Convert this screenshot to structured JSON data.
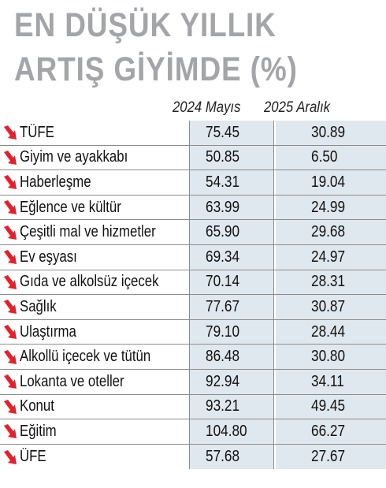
{
  "title": {
    "line1": "EN DÜŞÜK YILLIK",
    "line2": "ARTIŞ GİYİMDE (%)"
  },
  "colors": {
    "title": "#a3a5a8",
    "cell_bg": "#dfe8ee",
    "arrow": "#e4202a",
    "rule": "#8c8c8c"
  },
  "chart_data": {
    "type": "table",
    "columns": [
      "2024 Mayıs",
      "2025 Aralık"
    ],
    "rows": [
      {
        "label": "TÜFE",
        "values": [
          "75.45",
          "30.89"
        ]
      },
      {
        "label": "Giyim ve ayakkabı",
        "values": [
          "50.85",
          "6.50"
        ]
      },
      {
        "label": "Haberleşme",
        "values": [
          "54.31",
          "19.04"
        ]
      },
      {
        "label": "Eğlence ve kültür",
        "values": [
          "63.99",
          "24.99"
        ]
      },
      {
        "label": "Çeşitli mal ve hizmetler",
        "values": [
          "65.90",
          "29.68"
        ]
      },
      {
        "label": "Ev eşyası",
        "values": [
          "69.34",
          "24.97"
        ]
      },
      {
        "label": "Gıda ve alkolsüz içecek",
        "values": [
          "70.14",
          "28.31"
        ]
      },
      {
        "label": "Sağlık",
        "values": [
          "77.67",
          "30.87"
        ]
      },
      {
        "label": "Ulaştırma",
        "values": [
          "79.10",
          "28.44"
        ]
      },
      {
        "label": "Alkollü içecek ve tütün",
        "values": [
          "86.48",
          "30.80"
        ]
      },
      {
        "label": "Lokanta ve oteller",
        "values": [
          "92.94",
          "34.11"
        ]
      },
      {
        "label": "Konut",
        "values": [
          "93.21",
          "49.45"
        ]
      },
      {
        "label": "Eğitim",
        "values": [
          "104.80",
          "66.27"
        ]
      },
      {
        "label": "ÜFE",
        "values": [
          "57.68",
          "27.67"
        ]
      }
    ],
    "row_icon": "down-arrow-icon"
  }
}
